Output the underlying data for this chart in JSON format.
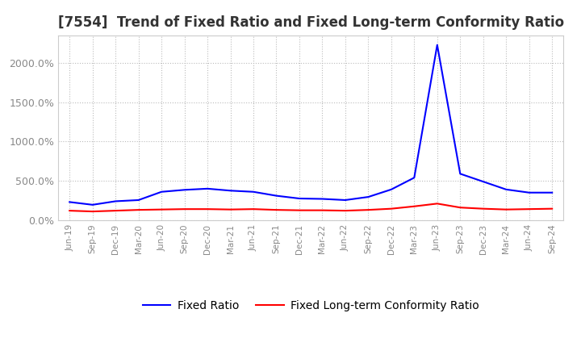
{
  "title": "[7554]  Trend of Fixed Ratio and Fixed Long-term Conformity Ratio",
  "x_labels": [
    "Jun-19",
    "Sep-19",
    "Dec-19",
    "Mar-20",
    "Jun-20",
    "Sep-20",
    "Dec-20",
    "Mar-21",
    "Jun-21",
    "Sep-21",
    "Dec-21",
    "Mar-22",
    "Jun-22",
    "Sep-22",
    "Dec-22",
    "Mar-23",
    "Jun-23",
    "Sep-23",
    "Dec-23",
    "Mar-24",
    "Jun-24",
    "Sep-24"
  ],
  "fixed_ratio": [
    230,
    195,
    240,
    255,
    360,
    385,
    400,
    375,
    360,
    310,
    275,
    270,
    255,
    295,
    390,
    540,
    2230,
    590,
    490,
    390,
    350,
    350
  ],
  "fixed_lt_ratio": [
    120,
    110,
    120,
    130,
    135,
    140,
    140,
    135,
    140,
    130,
    125,
    125,
    120,
    130,
    145,
    175,
    210,
    160,
    145,
    135,
    140,
    145
  ],
  "blue_color": "#0000FF",
  "red_color": "#FF0000",
  "background_color": "#FFFFFF",
  "grid_color": "#BBBBBB",
  "yticks": [
    0,
    500,
    1000,
    1500,
    2000
  ],
  "ylim": [
    0,
    2350
  ],
  "legend_fixed_ratio": "Fixed Ratio",
  "legend_fixed_lt_ratio": "Fixed Long-term Conformity Ratio",
  "title_fontsize": 12,
  "tick_label_color": "#888888",
  "legend_fontsize": 10
}
